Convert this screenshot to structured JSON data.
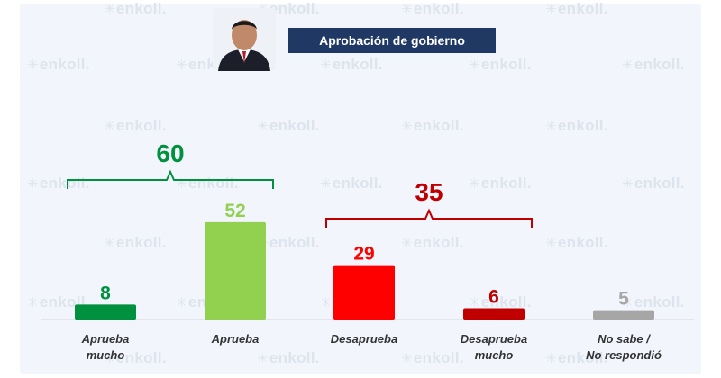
{
  "header": {
    "title": "Aprobación de gobierno",
    "watermark_text": "enkoll."
  },
  "colors": {
    "background": "#f2f6fc",
    "title_bg": "#1f3864",
    "approve_group": "#008a3e",
    "disapprove_group": "#c00000"
  },
  "chart_data": {
    "type": "bar",
    "categories": [
      "Aprueba mucho",
      "Aprueba",
      "Desaprueba",
      "Desaprueba mucho",
      "No sabe / No respondió"
    ],
    "category_lines": [
      [
        "Aprueba",
        "mucho"
      ],
      [
        "Aprueba"
      ],
      [
        "Desaprueba"
      ],
      [
        "Desaprueba",
        "mucho"
      ],
      [
        "No sabe /",
        "No respondió"
      ]
    ],
    "values": [
      8,
      52,
      29,
      6,
      5
    ],
    "colors": [
      "#00913f",
      "#92d050",
      "#ff0000",
      "#c00000",
      "#a6a6a6"
    ],
    "groups": [
      {
        "label": "60",
        "value": 60,
        "from": 0,
        "to": 1,
        "color": "#00913f"
      },
      {
        "label": "35",
        "value": 35,
        "from": 2,
        "to": 3,
        "color": "#c00000"
      }
    ],
    "title": "Aprobación de gobierno",
    "xlabel": "",
    "ylabel": "",
    "grid": false,
    "legend": "none"
  }
}
